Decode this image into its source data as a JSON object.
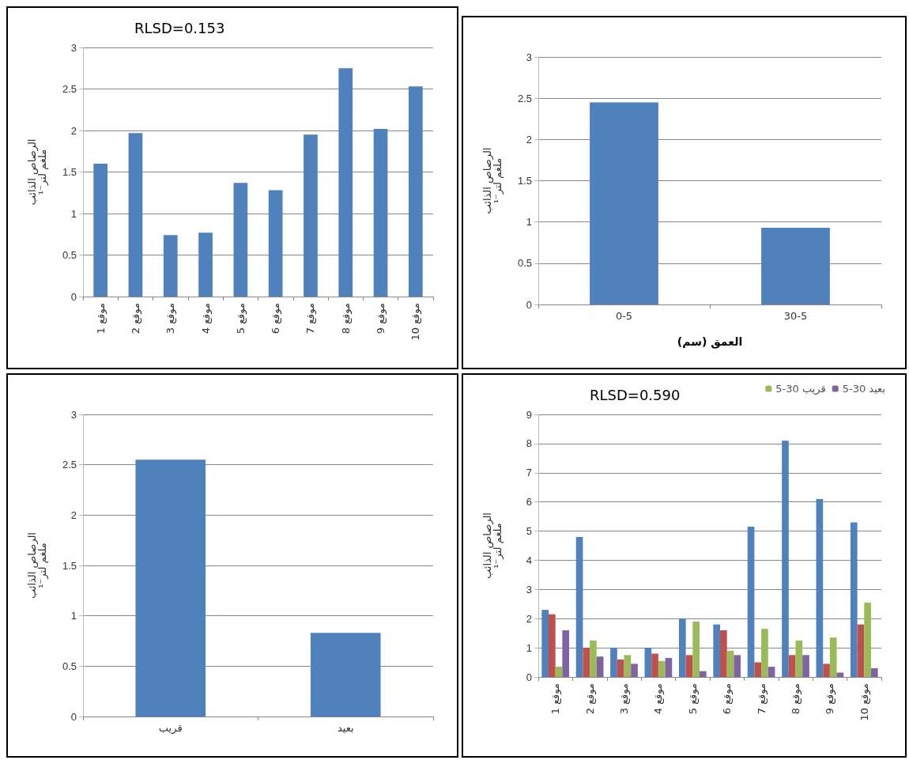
{
  "chart_data": [
    {
      "type": "bar",
      "ylabel": "الرصاص الذائب\nملغم لتر⁻¹",
      "annotations": [
        "RLSD=0.153"
      ],
      "categories": [
        "موقع 1",
        "موقع 2",
        "موقع 3",
        "موقع 4",
        "موقع 5",
        "موقع 6",
        "موقع 7",
        "موقع 8",
        "موقع 9",
        "موقع 10"
      ],
      "values": [
        1.6,
        1.97,
        0.74,
        0.77,
        1.37,
        1.28,
        1.95,
        2.75,
        2.02,
        2.53
      ],
      "color": "#4f81bd",
      "ylim": [
        0,
        3
      ],
      "yticks": [
        0,
        0.5,
        1,
        1.5,
        2,
        2.5,
        3
      ],
      "grid": "y",
      "legend": false
    },
    {
      "type": "bar",
      "ylabel": "الرصاص الذائب\nملغم لتر⁻¹",
      "xlabel": "العمق (سم)",
      "categories": [
        "0-5",
        "30-5"
      ],
      "values": [
        2.45,
        0.93
      ],
      "color": "#4f81bd",
      "ylim": [
        0,
        3
      ],
      "yticks": [
        0,
        0.5,
        1,
        1.5,
        2,
        2.5,
        3
      ],
      "grid": "y",
      "legend": false
    },
    {
      "type": "bar",
      "ylabel": "الرصاص الذائب\nملغم لتر⁻¹",
      "categories": [
        "قريب",
        "بعيد"
      ],
      "values": [
        2.55,
        0.83
      ],
      "color": "#4f81bd",
      "ylim": [
        0,
        3
      ],
      "yticks": [
        0,
        0.5,
        1,
        1.5,
        2,
        2.5,
        3
      ],
      "grid": "y",
      "legend": false
    },
    {
      "type": "bar",
      "ylabel": "الرصاص الذائب\nملغم لتر⁻¹",
      "annotations": [
        "RLSD=0.590"
      ],
      "categories": [
        "موقع 1",
        "موقع 2",
        "موقع 3",
        "موقع 4",
        "موقع 5",
        "موقع 6",
        "موقع 7",
        "موقع 8",
        "موقع 9",
        "موقع 10"
      ],
      "series": [
        {
          "color": "#4f81bd",
          "values": [
            2.3,
            4.8,
            1.0,
            1.0,
            2.0,
            1.8,
            5.15,
            8.1,
            6.1,
            5.3
          ]
        },
        {
          "color": "#c0504d",
          "values": [
            2.15,
            1.0,
            0.6,
            0.8,
            0.75,
            1.6,
            0.5,
            0.75,
            0.45,
            1.8
          ]
        },
        {
          "name": "5-30 قريب",
          "color": "#9bbb59",
          "values": [
            0.35,
            1.25,
            0.75,
            0.55,
            1.9,
            0.9,
            1.65,
            1.25,
            1.35,
            2.55
          ]
        },
        {
          "name": "5-30 بعيد",
          "color": "#8064a2",
          "values": [
            1.6,
            0.7,
            0.45,
            0.65,
            0.2,
            0.75,
            0.35,
            0.75,
            0.15,
            0.3
          ]
        }
      ],
      "ylim": [
        0,
        9
      ],
      "yticks": [
        0,
        1,
        2,
        3,
        4,
        5,
        6,
        7,
        8,
        9
      ],
      "grid": "y",
      "legend": "top right"
    }
  ]
}
